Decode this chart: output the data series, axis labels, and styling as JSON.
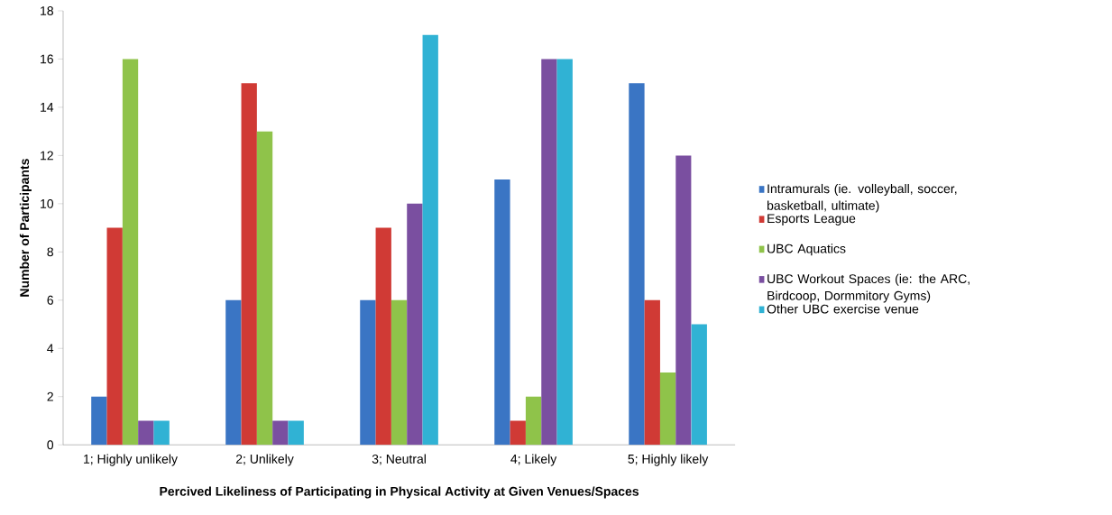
{
  "chart_data": {
    "type": "bar",
    "xlabel": "Percived Likeliness of Participating in Physical Activity at Given Venues/Spaces",
    "ylabel": "Number of Participants",
    "categories": [
      "1; Highly unlikely",
      "2; Unlikely",
      "3; Neutral",
      "4; Likely",
      "5; Highly likely"
    ],
    "series": [
      {
        "name": "Intramurals (ie. volleyball, soccer, basketball, ultimate)",
        "color": "#3a75c4",
        "values": [
          2,
          6,
          6,
          11,
          15
        ]
      },
      {
        "name": "Esports League",
        "color": "#d03a35",
        "values": [
          9,
          15,
          9,
          1,
          6
        ]
      },
      {
        "name": "UBC Aquatics",
        "color": "#8fc34a",
        "values": [
          16,
          13,
          6,
          2,
          3
        ]
      },
      {
        "name": "UBC Workout Spaces (ie: the ARC, Birdcoop, Dormmitory Gyms)",
        "color": "#7a4fa0",
        "values": [
          1,
          1,
          10,
          16,
          12
        ]
      },
      {
        "name": "Other UBC exercise venue",
        "color": "#30b2d4",
        "values": [
          1,
          1,
          17,
          16,
          5
        ]
      }
    ],
    "ylim": [
      0,
      18
    ],
    "yticks": [
      0,
      2,
      4,
      6,
      8,
      10,
      12,
      14,
      16,
      18
    ],
    "legend": "right"
  }
}
